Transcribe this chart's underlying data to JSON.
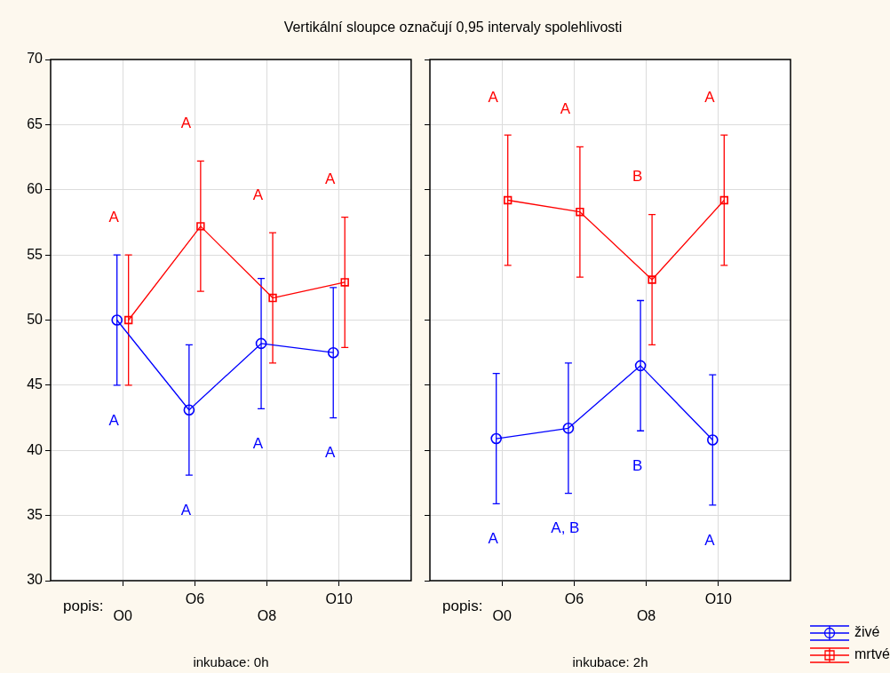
{
  "chart_data": [
    {
      "type": "line",
      "title": "Vertikální sloupce označují 0,95 intervaly spolehlivosti",
      "xlabel": "inkubace: 0h",
      "categories": [
        "O0",
        "O6",
        "O8",
        "O10"
      ],
      "ylim": [
        30,
        70
      ],
      "yticks": [
        30,
        35,
        40,
        45,
        50,
        55,
        60,
        65,
        70
      ],
      "grid": true,
      "legend": false,
      "annotations": [
        "popis:",
        "A",
        "A",
        "A",
        "A",
        "A",
        "A",
        "A",
        "A"
      ],
      "series": [
        {
          "color": "#0000ff",
          "marker": "circle",
          "values": [
            50,
            43.1,
            48.2,
            47.5
          ],
          "errors": [
            5,
            5,
            5,
            5
          ]
        },
        {
          "color": "#ff0000",
          "marker": "square",
          "values": [
            50,
            57.2,
            51.7,
            52.9
          ],
          "errors": [
            5,
            5,
            5,
            5
          ]
        }
      ]
    },
    {
      "type": "line",
      "xlabel": "inkubace: 2h",
      "categories": [
        "O0",
        "O6",
        "O8",
        "O10"
      ],
      "ylim": [
        30,
        70
      ],
      "yticks": [
        30,
        35,
        40,
        45,
        50,
        55,
        60,
        65,
        70
      ],
      "grid": true,
      "tick_labels": "x",
      "legend": "bottom right",
      "annotations": [
        "popis:",
        "A",
        "A",
        "B",
        "A",
        "A",
        "A, B",
        "B",
        "A"
      ],
      "series": [
        {
          "name": "živé",
          "color": "#0000ff",
          "marker": "circle",
          "values": [
            40.9,
            41.7,
            46.5,
            40.8
          ],
          "errors": [
            5,
            5,
            5,
            5
          ]
        },
        {
          "name": "mrtvé",
          "color": "#ff0000",
          "marker": "square",
          "values": [
            59.2,
            58.3,
            53.1,
            59.2
          ],
          "errors": [
            5,
            5,
            5,
            5
          ]
        }
      ]
    }
  ]
}
